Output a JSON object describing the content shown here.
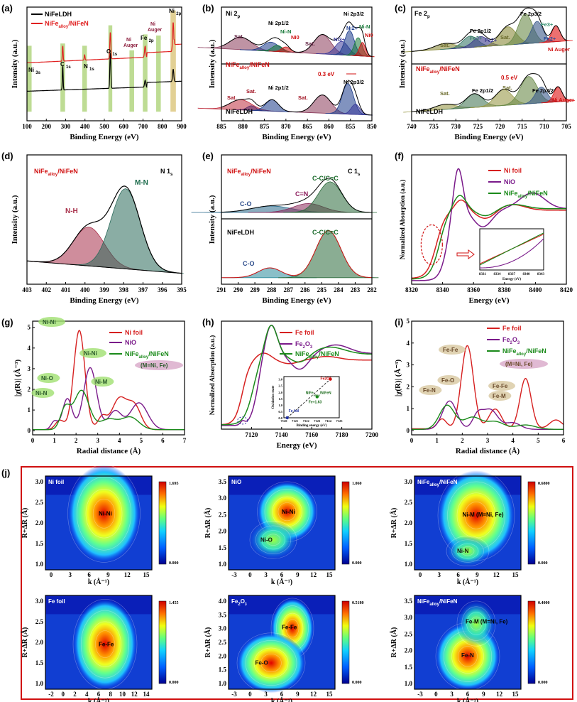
{
  "chart_data": [
    {
      "id": "a",
      "type": "line",
      "panel": "(a)",
      "xlabel": "Binding Energy (eV)",
      "ylabel": "Intensity (a.u.)",
      "xlim": [
        100,
        900
      ],
      "xticks": [
        "100",
        "200",
        "300",
        "400",
        "500",
        "600",
        "700",
        "800",
        "900"
      ],
      "legend": [
        "NiFeLDH",
        "NiFe_alloy/NiFeN"
      ],
      "legend_colors": [
        "#000000",
        "#e02020"
      ],
      "regions": [
        {
          "label": "Ni 3s",
          "x": 112
        },
        {
          "label": "C 1s",
          "x": 285
        },
        {
          "label": "N 1s",
          "x": 398
        },
        {
          "label": "O 1s",
          "x": 531
        },
        {
          "label": "Ni Auger",
          "x": 642
        },
        {
          "label": "Fe 2p",
          "x": 711
        },
        {
          "label": "Ni Auger",
          "x": 780
        },
        {
          "label": "Ni 2p",
          "x": 856
        }
      ]
    },
    {
      "id": "b",
      "type": "line",
      "panel": "(b)",
      "title": "Ni 2p",
      "xlabel": "Binding Energy (eV)",
      "ylabel": "Intensity (a.u.)",
      "xlim": [
        885,
        850
      ],
      "xticks": [
        "885",
        "880",
        "875",
        "870",
        "865",
        "860",
        "855",
        "850"
      ],
      "labels_top": [
        "Sat.",
        "Ni 2p1/2",
        "Ni-N",
        "Ni0",
        "Sat.",
        "Ni3+",
        "Ni2+",
        "Ni 2p3/2",
        "Ni-N",
        "Ni0"
      ],
      "labels_bottom": [
        "Sat.",
        "Sat.",
        "Ni 2p1/2",
        "Sat.",
        "Ni 2p3/2"
      ],
      "sample_top": "NiFe_alloy/NiFeN",
      "sample_bottom": "NiFeLDH",
      "shift": "0.3 eV"
    },
    {
      "id": "c",
      "type": "line",
      "panel": "(c)",
      "title": "Fe 2p",
      "xlabel": "Binding Energy (eV)",
      "ylabel": "Intensity (a.u.)",
      "xlim": [
        740,
        703
      ],
      "xticks": [
        "740",
        "735",
        "730",
        "725",
        "720",
        "715",
        "710",
        "705"
      ],
      "labels_top": [
        "Sat.",
        "Fe 2p1/2",
        "Fe3+",
        "Fe2+",
        "Sat.",
        "Fe 2p3/2",
        "Fe3+",
        "Fe2+",
        "Ni Auger"
      ],
      "labels_bottom": [
        "Sat.",
        "Fe 2p1/2",
        "Sat.",
        "Fe 2p3/2",
        "Ni Auger"
      ],
      "sample_top": "NiFe_alloy/NiFeN",
      "sample_bottom": "NiFeLDH",
      "shift": "0.5 eV"
    },
    {
      "id": "d",
      "type": "line",
      "panel": "(d)",
      "title": "N 1s",
      "xlabel": "Binding Energy (eV)",
      "ylabel": "Intensity (a.u.)",
      "xlim": [
        403,
        395
      ],
      "xticks": [
        "403",
        "402",
        "401",
        "400",
        "399",
        "398",
        "397",
        "396",
        "395"
      ],
      "peaks": [
        {
          "label": "N-H",
          "center": 399.8
        },
        {
          "label": "M-N",
          "center": 397.9
        }
      ],
      "sample": "NiFe_alloy/NiFeN"
    },
    {
      "id": "e",
      "type": "line",
      "panel": "(e)",
      "title": "C 1s",
      "xlabel": "Binding Energy (eV)",
      "ylabel": "Intensity (a.u.)",
      "xlim": [
        291,
        282
      ],
      "xticks": [
        "291",
        "290",
        "289",
        "288",
        "287",
        "286",
        "285",
        "284",
        "283",
        "282"
      ],
      "top": {
        "sample": "NiFe_alloy/NiFeN",
        "peaks": [
          "C-O",
          "C=N",
          "C-C/C=C"
        ]
      },
      "bottom": {
        "sample": "NiFeLDH",
        "peaks": [
          "C-O",
          "C-C/C=C"
        ]
      }
    },
    {
      "id": "f",
      "type": "line",
      "panel": "(f)",
      "xlabel": "Energy (eV)",
      "ylabel": "Normalized Absorption (a.u.)",
      "xlim": [
        8320,
        8420
      ],
      "xticks": [
        "8320",
        "8340",
        "8360",
        "8380",
        "8400",
        "8420"
      ],
      "series": [
        {
          "name": "Ni foil",
          "color": "#d62020"
        },
        {
          "name": "NiO",
          "color": "#7a1a8a"
        },
        {
          "name": "NiFe_alloy/NiFeN",
          "color": "#1a8a1a"
        }
      ],
      "inset_xticks": [
        "8331",
        "8334",
        "8337",
        "8340",
        "8343"
      ],
      "inset_xlabel": "Energy (eV)"
    },
    {
      "id": "g",
      "type": "line",
      "panel": "(g)",
      "xlabel": "Radial distance (Å)",
      "ylabel": "|χ(R)| (Å⁻³)",
      "xlim": [
        0,
        7
      ],
      "ylim": [
        -0.2,
        5.3
      ],
      "xticks": [
        "0",
        "1",
        "2",
        "3",
        "4",
        "5",
        "6",
        "7"
      ],
      "yticks": [
        "0",
        "1",
        "2",
        "3",
        "4",
        "5"
      ],
      "series": [
        {
          "name": "Ni foil",
          "color": "#d62020"
        },
        {
          "name": "NiO",
          "color": "#7a1a8a"
        },
        {
          "name": "NiFe_alloy/NiFeN",
          "color": "#1a8a1a"
        }
      ],
      "annotations": [
        "Ni-Ni",
        "Ni-Ni",
        "Ni-O",
        "Ni-N",
        "Ni-M",
        "(M=Ni, Fe)"
      ]
    },
    {
      "id": "h",
      "type": "line",
      "panel": "(h)",
      "xlabel": "Energy (eV)",
      "ylabel": "Normalized Absorption (a.u.)",
      "xlim": [
        7100,
        7200
      ],
      "xticks": [
        "7120",
        "7140",
        "7160",
        "7180",
        "7200"
      ],
      "series": [
        {
          "name": "Fe foil",
          "color": "#d62020"
        },
        {
          "name": "Fe2O3",
          "color": "#7a1a8a"
        },
        {
          "name": "NiFe_alloy/NiFeN",
          "color": "#1a8a1a"
        }
      ],
      "inset": {
        "xlabel": "Binding energy (eV)",
        "ylabel": "Oxidation state",
        "xticks": [
          "7120",
          "7121",
          "7122",
          "7123",
          "7124",
          "7125"
        ],
        "yticks": [
          "0.0",
          "0.5",
          "1.0",
          "1.5",
          "2.0",
          "2.5",
          "3.0"
        ],
        "points": [
          {
            "label": "Fe foil",
            "x": 7120.3,
            "y": 0.0
          },
          {
            "label": "NiFe_alloy/NiFeN",
            "x": 7123.0,
            "y": 1.63
          },
          {
            "label": "Fe2O3",
            "x": 7124.2,
            "y": 3.0
          }
        ],
        "oxidation_label": "Fe+1.63"
      }
    },
    {
      "id": "i",
      "type": "line",
      "panel": "(i)",
      "xlabel": "Radial distance (Å)",
      "ylabel": "|χ(R)| (Å⁻³)",
      "xlim": [
        0,
        6
      ],
      "ylim": [
        -0.2,
        5
      ],
      "xticks": [
        "0",
        "1",
        "2",
        "3",
        "4",
        "5",
        "6"
      ],
      "yticks": [
        "0",
        "1",
        "2",
        "3",
        "4",
        "5"
      ],
      "series": [
        {
          "name": "Fe foil",
          "color": "#d62020"
        },
        {
          "name": "Fe2O3",
          "color": "#7a1a8a"
        },
        {
          "name": "NiFe_alloy/NiFeN",
          "color": "#1a8a1a"
        }
      ],
      "annotations": [
        "Fe-Fe",
        "Fe-O",
        "Fe-N",
        "Fe-Fe",
        "Fe-M",
        "(M=Ni, Fe)"
      ]
    },
    {
      "id": "j",
      "type": "heatmap",
      "panel": "(j)",
      "xlabel": "k (Å⁻¹)",
      "ylabel": "R+ΔR (Å)",
      "maps": [
        {
          "title": "Ni foil",
          "labels": [
            "Ni-Ni"
          ],
          "cmax": "1.695",
          "cmin": "0.000",
          "xticks": [
            "0",
            "3",
            "6",
            "9",
            "12",
            "15"
          ],
          "yticks": [
            "1.0",
            "1.5",
            "2.0",
            "2.5",
            "3.0"
          ]
        },
        {
          "title": "NiO",
          "labels": [
            "Ni-Ni",
            "Ni-O"
          ],
          "cmax": "1.060",
          "cmin": "0.000",
          "xticks": [
            "-3",
            "0",
            "3",
            "6",
            "9",
            "12",
            "15"
          ],
          "yticks": [
            "1.0",
            "1.5",
            "2.0",
            "2.5",
            "3.0",
            "3.5"
          ]
        },
        {
          "title": "NiFe_alloy/NiFeN",
          "labels": [
            "Ni-M (M=Ni, Fe)",
            "Ni-N"
          ],
          "cmax": "0.6800",
          "cmin": "0.000",
          "xticks": [
            "0",
            "3",
            "6",
            "9",
            "12",
            "15"
          ],
          "yticks": [
            "1.0",
            "1.5",
            "2.0",
            "2.5",
            "3.0"
          ]
        },
        {
          "title": "Fe foil",
          "labels": [
            "Fe-Fe"
          ],
          "cmax": "1.455",
          "cmin": "0.000",
          "xticks": [
            "-2",
            "0",
            "2",
            "4",
            "6",
            "8",
            "10",
            "12",
            "14"
          ],
          "yticks": [
            "1.0",
            "1.5",
            "2.0",
            "2.5",
            "3.0"
          ]
        },
        {
          "title": "Fe2O3",
          "labels": [
            "Fe-Fe",
            "Fe-O"
          ],
          "cmax": "0.5180",
          "cmin": "0.000",
          "xticks": [
            "-3",
            "0",
            "3",
            "6",
            "9",
            "12",
            "15"
          ],
          "yticks": [
            "1.0",
            "1.5",
            "2.0",
            "2.5",
            "3.0",
            "3.5",
            "4.0"
          ]
        },
        {
          "title": "NiFe_alloy/NiFeN",
          "labels": [
            "Fe-M (M=Ni, Fe)",
            "Fe-N"
          ],
          "cmax": "0.4000",
          "cmin": "0.000",
          "xticks": [
            "-3",
            "0",
            "3",
            "6",
            "9",
            "12",
            "15"
          ],
          "yticks": [
            "1.0",
            "1.5",
            "2.0",
            "2.5",
            "3.0",
            "3.5"
          ]
        }
      ]
    }
  ]
}
